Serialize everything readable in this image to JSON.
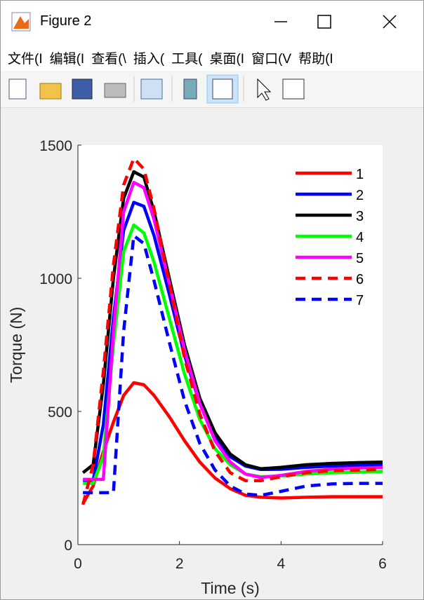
{
  "window": {
    "title": "Figure 2",
    "menu": [
      "文件(I",
      "编辑(I",
      "查看(\\",
      "插入(",
      "工具(",
      "桌面(I",
      "窗口(V",
      "帮助(I"
    ]
  },
  "chart_data": {
    "type": "line",
    "xlabel": "Time (s)",
    "ylabel": "Torque (N)",
    "x": [
      0.1,
      0.3,
      0.5,
      0.7,
      0.9,
      1.1,
      1.3,
      1.5,
      1.8,
      2.1,
      2.4,
      2.7,
      3.0,
      3.3,
      3.6,
      4.0,
      4.5,
      5.0,
      5.5,
      6.0
    ],
    "xlim": [
      0,
      6
    ],
    "xticks": [
      0,
      2,
      4,
      6
    ],
    "ylim": [
      0,
      1500
    ],
    "yticks": [
      0,
      500,
      1000,
      1500
    ],
    "legend": "upper right",
    "series": [
      {
        "name": "1",
        "color": "#ff0000",
        "dash": false,
        "values": [
          155,
          220,
          350,
          460,
          560,
          608,
          600,
          560,
          480,
          390,
          310,
          250,
          210,
          185,
          178,
          175,
          178,
          180,
          180,
          180
        ]
      },
      {
        "name": "2",
        "color": "#0000ff",
        "dash": false,
        "values": [
          240,
          240,
          450,
          850,
          1180,
          1285,
          1270,
          1160,
          940,
          710,
          530,
          400,
          330,
          295,
          282,
          283,
          290,
          295,
          298,
          300
        ]
      },
      {
        "name": "3",
        "color": "#000000",
        "dash": false,
        "values": [
          270,
          300,
          600,
          1000,
          1300,
          1400,
          1380,
          1250,
          1000,
          750,
          550,
          420,
          340,
          300,
          285,
          290,
          300,
          305,
          308,
          310
        ]
      },
      {
        "name": "4",
        "color": "#00ff00",
        "dash": false,
        "values": [
          230,
          230,
          330,
          750,
          1100,
          1200,
          1170,
          1060,
          850,
          640,
          470,
          360,
          300,
          265,
          255,
          258,
          265,
          270,
          272,
          275
        ]
      },
      {
        "name": "5",
        "color": "#ff00ff",
        "dash": false,
        "values": [
          245,
          245,
          245,
          800,
          1250,
          1360,
          1340,
          1220,
          980,
          730,
          530,
          390,
          310,
          265,
          252,
          260,
          275,
          283,
          287,
          290
        ]
      },
      {
        "name": "6",
        "color": "#ff0000",
        "dash": true,
        "values": [
          150,
          300,
          650,
          1050,
          1350,
          1450,
          1410,
          1260,
          980,
          700,
          490,
          350,
          270,
          240,
          240,
          255,
          270,
          278,
          280,
          282
        ]
      },
      {
        "name": "7",
        "color": "#0000ff",
        "dash": true,
        "values": [
          195,
          195,
          195,
          195,
          800,
          1160,
          1130,
          990,
          760,
          540,
          380,
          280,
          220,
          190,
          185,
          200,
          220,
          228,
          230,
          230
        ]
      }
    ]
  }
}
